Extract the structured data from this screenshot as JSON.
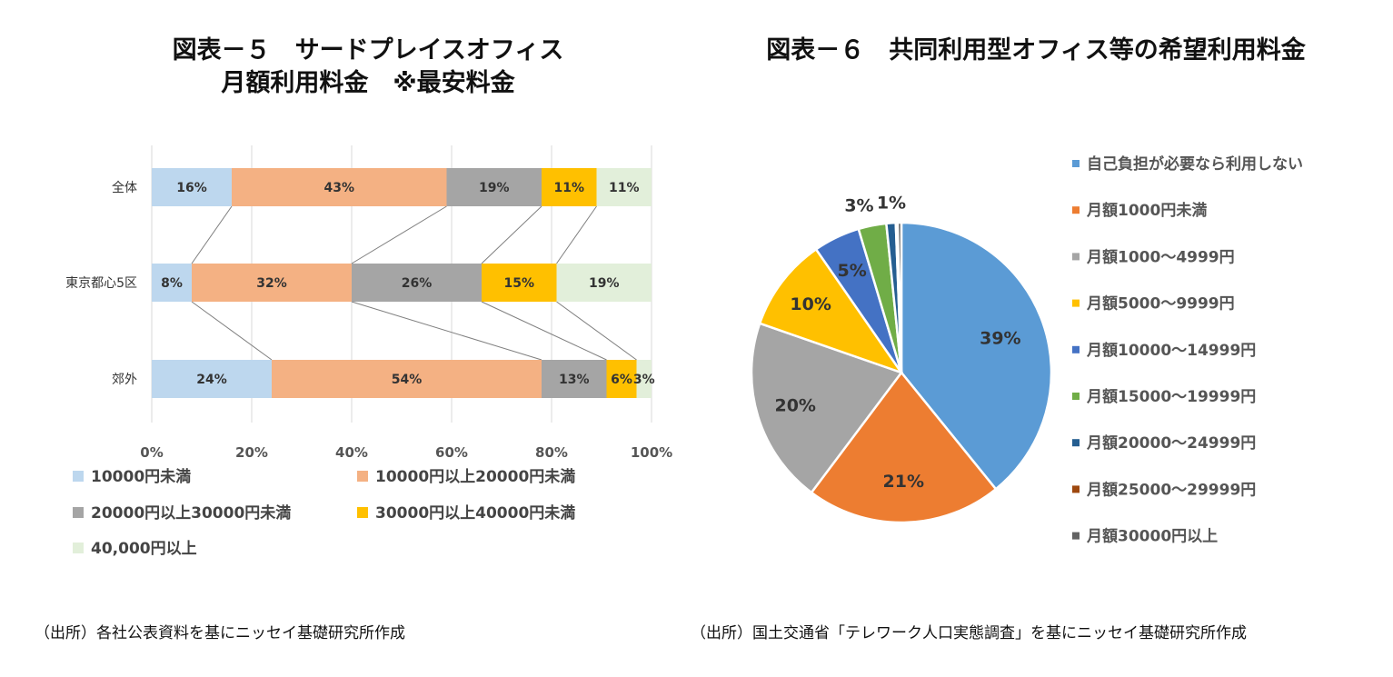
{
  "chart_left": {
    "title_line1": "図表－５　サードプレイスオフィス",
    "title_line2": "月額利用料金　※最安料金",
    "source": "（出所）各社公表資料を基にニッセイ基礎研究所作成"
  },
  "chart_right": {
    "title": "図表－６　共同利用型オフィス等の希望利用料金",
    "source": "（出所）国土交通省「テレワーク人口実態調査」を基にニッセイ基礎研究所作成"
  },
  "chart_data": [
    {
      "type": "bar",
      "orientation": "horizontal",
      "stacked": "percent",
      "title": "図表－５　サードプレイスオフィス 月額利用料金　※最安料金",
      "categories": [
        "全体",
        "東京都心5区",
        "郊外"
      ],
      "x_ticks": [
        "0%",
        "20%",
        "40%",
        "60%",
        "80%",
        "100%"
      ],
      "xlim": [
        0,
        100
      ],
      "legend_position": "bottom",
      "series_lines": true,
      "series": [
        {
          "name": "10000円未満",
          "color": "#bdd7ee",
          "values": [
            16,
            8,
            24
          ],
          "labels": [
            "16%",
            "8%",
            "24%"
          ]
        },
        {
          "name": "10000円以上20000円未満",
          "color": "#f4b183",
          "values": [
            43,
            32,
            54
          ],
          "labels": [
            "43%",
            "32%",
            "54%"
          ]
        },
        {
          "name": "20000円以上30000円未満",
          "color": "#a5a5a5",
          "values": [
            19,
            26,
            13
          ],
          "labels": [
            "19%",
            "26%",
            "13%"
          ]
        },
        {
          "name": "30000円以上40000円未満",
          "color": "#ffc000",
          "values": [
            11,
            15,
            6
          ],
          "labels": [
            "11%",
            "15%",
            "6%"
          ]
        },
        {
          "name": "40,000円以上",
          "color": "#e2efda",
          "values": [
            11,
            19,
            3
          ],
          "labels": [
            "11%",
            "19%",
            "3%"
          ]
        }
      ]
    },
    {
      "type": "pie",
      "title": "図表－６　共同利用型オフィス等の希望利用料金",
      "legend_position": "right",
      "slices": [
        {
          "name": "自己負担が必要なら利用しない",
          "value": 39,
          "label": "39%",
          "color": "#5b9bd5"
        },
        {
          "name": "月額1000円未満",
          "value": 21,
          "label": "21%",
          "color": "#ed7d31"
        },
        {
          "name": "月額1000～4999円",
          "value": 20,
          "label": "20%",
          "color": "#a5a5a5"
        },
        {
          "name": "月額5000～9999円",
          "value": 10,
          "label": "10%",
          "color": "#ffc000"
        },
        {
          "name": "月額10000～14999円",
          "value": 5,
          "label": "5%",
          "color": "#4472c4"
        },
        {
          "name": "月額15000～19999円",
          "value": 3,
          "label": "3%",
          "color": "#70ad47"
        },
        {
          "name": "月額20000～24999円",
          "value": 1,
          "label": "1%",
          "color": "#255e91"
        },
        {
          "name": "月額25000～29999円",
          "value": 0.2,
          "label": "",
          "color": "#9e480e"
        },
        {
          "name": "月額30000円以上",
          "value": 0.4,
          "label": "",
          "color": "#636363"
        }
      ]
    }
  ]
}
